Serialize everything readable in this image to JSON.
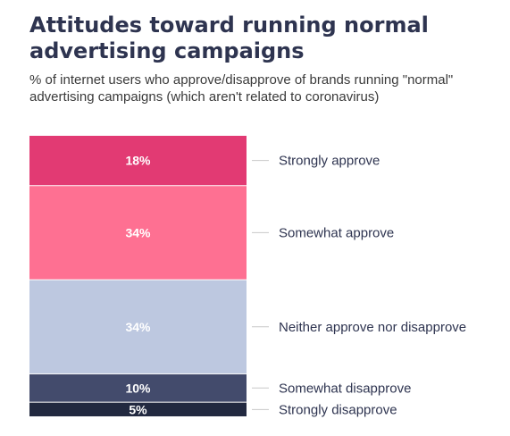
{
  "chart_data": {
    "type": "bar",
    "stacked": true,
    "title": "Attitudes toward running normal advertising campaigns",
    "subtitle": "% of internet users who approve/disapprove of brands running \"normal\" advertising campaigns (which aren't related to coronavirus)",
    "unit": "%",
    "segments": [
      {
        "label": "Strongly approve",
        "value": 18,
        "value_label": "18%",
        "color": "#e23a73"
      },
      {
        "label": "Somewhat approve",
        "value": 34,
        "value_label": "34%",
        "color": "#fe7092"
      },
      {
        "label": "Neither approve nor disapprove",
        "value": 34,
        "value_label": "34%",
        "color": "#bdc8e0"
      },
      {
        "label": "Somewhat disapprove",
        "value": 10,
        "value_label": "10%",
        "color": "#434b6c"
      },
      {
        "label": "Strongly disapprove",
        "value": 5,
        "value_label": "5%",
        "color": "#222940"
      }
    ],
    "legend_placement": "right"
  }
}
